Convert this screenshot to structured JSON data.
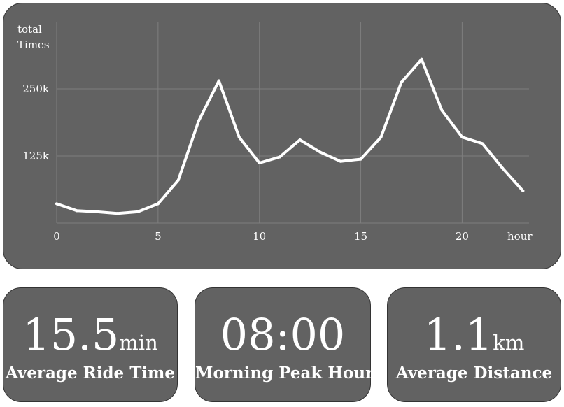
{
  "chart_data": {
    "type": "line",
    "ylabel_line1": "total",
    "ylabel_line2": "Times",
    "xlabel": "hour",
    "x": [
      0,
      1,
      2,
      3,
      4,
      5,
      6,
      7,
      8,
      9,
      10,
      11,
      12,
      13,
      14,
      15,
      16,
      17,
      18,
      19,
      20,
      21,
      22,
      23
    ],
    "y": [
      36000,
      23000,
      21000,
      18000,
      21000,
      36000,
      80000,
      190000,
      265000,
      160000,
      112000,
      123000,
      155000,
      132000,
      115000,
      119000,
      160000,
      262000,
      305000,
      210000,
      160000,
      148000,
      102000,
      60000
    ],
    "xlim": [
      0,
      23.3
    ],
    "ylim": [
      0,
      375000
    ],
    "x_ticks": [
      0,
      5,
      10,
      15,
      20
    ],
    "x_tick_labels": [
      "0",
      "5",
      "10",
      "15",
      "20"
    ],
    "y_ticks": [
      125000,
      250000
    ],
    "y_tick_labels": [
      "125k",
      "250k"
    ],
    "grid": true,
    "line_color": "#ffffff",
    "grid_color": "#7e7e7e",
    "background": "#626262"
  },
  "stats": {
    "ride_time": {
      "value": "15.5",
      "unit": "min",
      "label": "Average Ride Time"
    },
    "peak_hour": {
      "value": "08:00",
      "unit": "",
      "label": "Morning Peak Hour"
    },
    "distance": {
      "value": "1.1",
      "unit": "km",
      "label": "Average Distance"
    }
  }
}
